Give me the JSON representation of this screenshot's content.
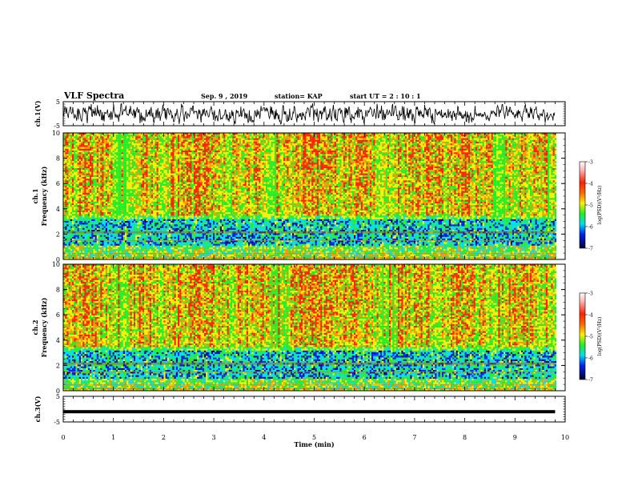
{
  "header": {
    "title": "VLF Spectra",
    "date": "Sep. 9 , 2019",
    "station": "station= KAP",
    "start": "start  UT =   2 : 10 : 1"
  },
  "chart_data": [
    {
      "type": "line",
      "ylabel": "ch.1(V)",
      "ylim": [
        -5,
        5
      ],
      "yticks": [
        "5",
        "-5"
      ],
      "description_values": {
        "mean": 0,
        "amplitude_approx": 2
      }
    },
    {
      "type": "heatmap",
      "ylabel_top": "ch.1",
      "ylabel": "Frequency  (kHz)",
      "ylim": [
        0,
        10
      ],
      "yticks": [
        "10",
        "8",
        "6",
        "4",
        "2",
        "0"
      ],
      "colorbar": {
        "label": "log(PSD)(V²/Hz)",
        "range": [
          -7,
          -3
        ],
        "ticks": [
          "-3",
          "-4",
          "-5",
          "-6",
          "-7"
        ]
      },
      "bands": {
        "quiet_low_kHz": [
          1.2,
          3.2
        ],
        "high_activity_kHz": [
          3.5,
          10
        ]
      }
    },
    {
      "type": "heatmap",
      "ylabel_top": "ch.2",
      "ylabel": "Frequency  (kHz)",
      "ylim": [
        0,
        10
      ],
      "yticks": [
        "10",
        "8",
        "6",
        "4",
        "2",
        "0"
      ],
      "colorbar": {
        "label": "log(PSD)(V²/Hz)",
        "range": [
          -7,
          -3
        ],
        "ticks": [
          "-3",
          "-4",
          "-5",
          "-6",
          "-7"
        ]
      },
      "bands": {
        "quiet_low_kHz": [
          1.0,
          3.3
        ],
        "high_activity_kHz": [
          3.5,
          10
        ]
      }
    },
    {
      "type": "line",
      "ylabel": "ch.3(V)",
      "ylim": [
        -5,
        5
      ],
      "yticks": [
        "5",
        "-5"
      ],
      "values_constant": -1
    }
  ],
  "xaxis": {
    "label": "Time  (min)",
    "xlim": [
      0,
      10
    ],
    "ticks": [
      "0",
      "1",
      "2",
      "3",
      "4",
      "5",
      "6",
      "7",
      "8",
      "9",
      "10"
    ],
    "data_end_min": 9.8
  },
  "colors": {
    "red": "#ff2200",
    "orange": "#ff9900",
    "yellow": "#ffee00",
    "green": "#22ee22",
    "cyan": "#00ddee",
    "blue": "#0022ee",
    "navy": "#000088"
  }
}
